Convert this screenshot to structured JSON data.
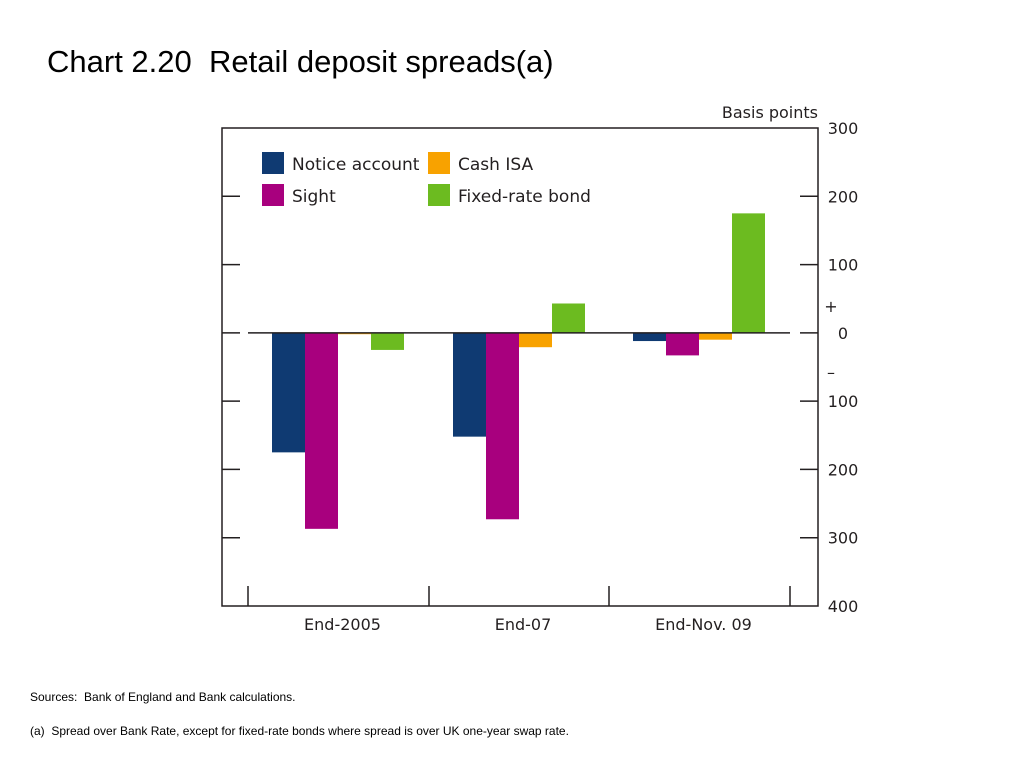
{
  "page": {
    "title": "Chart 2.20  Retail deposit spreads(a)",
    "sources": "Sources:  Bank of England and Bank calculations.",
    "footnote": "(a)  Spread over Bank Rate, except for fixed-rate bonds where spread is over UK one-year swap rate."
  },
  "chart_data": {
    "type": "bar",
    "title": "",
    "unit_label": "Basis points",
    "categories": [
      "End-2005",
      "End-07",
      "End-Nov. 09"
    ],
    "series": [
      {
        "name": "Notice account",
        "color": "#0f3a72",
        "values": [
          -175,
          -152,
          -12
        ]
      },
      {
        "name": "Sight",
        "color": "#a8007e",
        "values": [
          -287,
          -273,
          -33
        ]
      },
      {
        "name": "Cash ISA",
        "color": "#f8a200",
        "values": [
          -2,
          -21,
          -10
        ]
      },
      {
        "name": "Fixed-rate bond",
        "color": "#6cbb20",
        "values": [
          -25,
          43,
          175
        ]
      }
    ],
    "ylim": [
      -400,
      300
    ],
    "y_ticks": [
      300,
      200,
      100,
      0,
      -100,
      -200,
      -300,
      -400
    ],
    "y_tick_labels": [
      "300",
      "200",
      "100",
      "0",
      "100",
      "200",
      "300",
      "400"
    ],
    "sign_labels": {
      "positive": "+",
      "negative": "–"
    },
    "legend_position": "top-left",
    "grid": false
  }
}
